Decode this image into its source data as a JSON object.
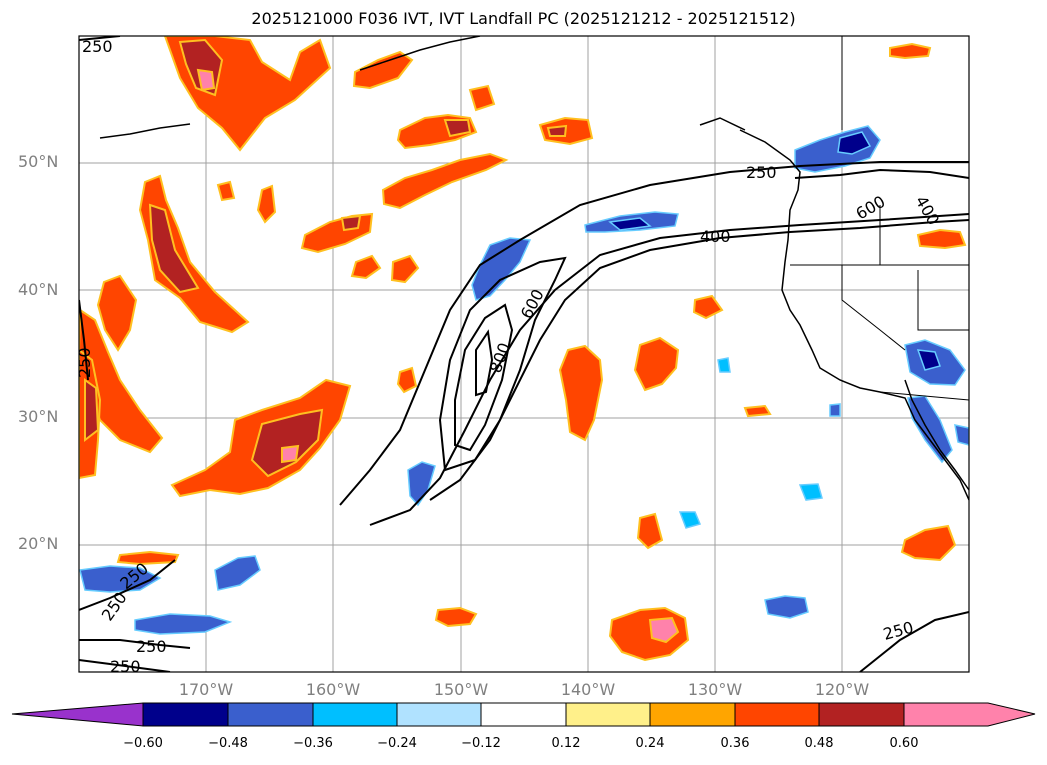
{
  "title": "2025121000 F036 IVT, IVT Landfall PC (2025121212 - 2025121512)",
  "map": {
    "lon_range": [
      -180,
      -110
    ],
    "lat_range": [
      10,
      60
    ],
    "lat_labels": [
      "50°N",
      "40°N",
      "30°N",
      "20°N"
    ],
    "lon_labels": [
      "170°W",
      "160°W",
      "150°W",
      "140°W",
      "130°W",
      "120°W"
    ],
    "ivt_contour_labels": [
      "250",
      "250",
      "400",
      "600",
      "600",
      "800",
      "400",
      "250",
      "250",
      "250",
      "250",
      "250",
      "250"
    ],
    "colors": {
      "land_line": "#000000",
      "grid": "#a0a0a0"
    }
  },
  "colorbar": {
    "ticks": [
      "−0.60",
      "−0.48",
      "−0.36",
      "−0.24",
      "−0.12",
      "0.12",
      "0.24",
      "0.36",
      "0.48",
      "0.60"
    ],
    "colors": [
      "#9932cc",
      "#00008b",
      "#3a5fcd",
      "#00bfff",
      "#b0e2ff",
      "#ffffff",
      "#fff08a",
      "#ffa500",
      "#ff4500",
      "#b22222",
      "#ff82ab"
    ]
  }
}
